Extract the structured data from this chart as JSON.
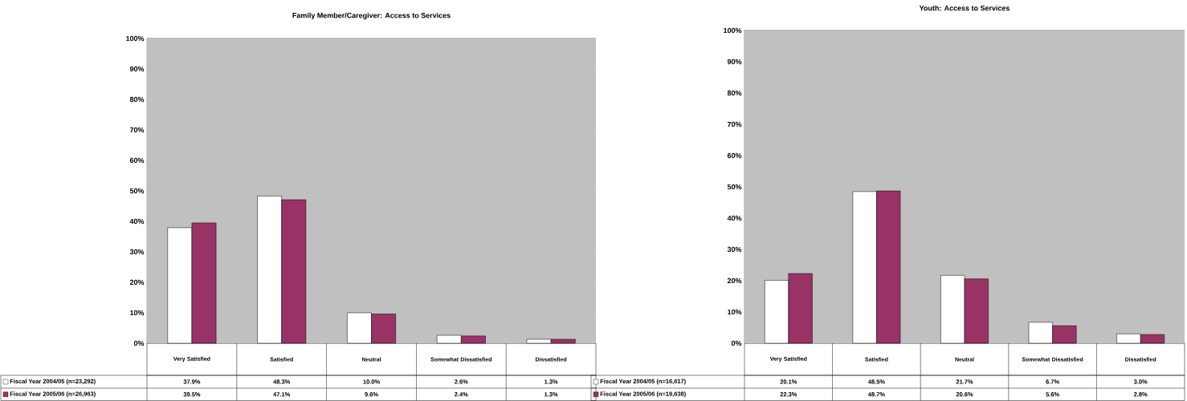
{
  "chart_data": [
    {
      "type": "bar",
      "title": "Family Member/Caregiver:  Access to Services",
      "categories": [
        "Very Satisfied",
        "Satisfied",
        "Neutral",
        "Somewhat Dissatisfied",
        "Dissatisfied"
      ],
      "series": [
        {
          "name": "Fiscal Year 2004/05 (n=23,292)",
          "color": "#ffffff",
          "values": [
            37.9,
            48.3,
            10.0,
            2.6,
            1.3
          ],
          "value_labels": [
            "37.9%",
            "48.3%",
            "10.0%",
            "2.6%",
            "1.3%"
          ]
        },
        {
          "name": "Fiscal Year 2005/06 (n=26,963)",
          "color": "#993366",
          "values": [
            39.5,
            47.1,
            9.6,
            2.4,
            1.3
          ],
          "value_labels": [
            "39.5%",
            "47.1%",
            "9.6%",
            "2.4%",
            "1.3%"
          ]
        }
      ],
      "ylim": [
        0,
        100
      ],
      "yticks": [
        {
          "value": 0,
          "label": "0%"
        },
        {
          "value": 10,
          "label": "10%"
        },
        {
          "value": 20,
          "label": "20%"
        },
        {
          "value": 30,
          "label": "30%"
        },
        {
          "value": 40,
          "label": "40%"
        },
        {
          "value": 50,
          "label": "50%"
        },
        {
          "value": 60,
          "label": "60%"
        },
        {
          "value": 70,
          "label": "70%"
        },
        {
          "value": 80,
          "label": "80%"
        },
        {
          "value": 90,
          "label": "90%"
        },
        {
          "value": 100,
          "label": "100%"
        }
      ],
      "grid": "y",
      "legend": "bottom left"
    },
    {
      "type": "bar",
      "title": "Youth:  Access to Services",
      "categories": [
        "Very Satisfied",
        "Satisfied",
        "Neutral",
        "Somewhat Dissatisfied",
        "Dissatisfied"
      ],
      "series": [
        {
          "name": "Fiscal Year 2004/05 (n=16,617)",
          "color": "#ffffff",
          "values": [
            20.1,
            48.5,
            21.7,
            6.7,
            3.0
          ],
          "value_labels": [
            "20.1%",
            "48.5%",
            "21.7%",
            "6.7%",
            "3.0%"
          ]
        },
        {
          "name": "Fiscal Year 2005/06 (n=19,638)",
          "color": "#993366",
          "values": [
            22.3,
            48.7,
            20.6,
            5.6,
            2.8
          ],
          "value_labels": [
            "22.3%",
            "48.7%",
            "20.6%",
            "5.6%",
            "2.8%"
          ]
        }
      ],
      "ylim": [
        0,
        100
      ],
      "yticks": [
        {
          "value": 0,
          "label": "0%"
        },
        {
          "value": 10,
          "label": "10%"
        },
        {
          "value": 20,
          "label": "20%"
        },
        {
          "value": 30,
          "label": "30%"
        },
        {
          "value": 40,
          "label": "40%"
        },
        {
          "value": 50,
          "label": "50%"
        },
        {
          "value": 60,
          "label": "60%"
        },
        {
          "value": 70,
          "label": "70%"
        },
        {
          "value": 80,
          "label": "80%"
        },
        {
          "value": 90,
          "label": "90%"
        },
        {
          "value": 100,
          "label": "100%"
        }
      ],
      "grid": "y",
      "legend": "bottom left"
    }
  ]
}
